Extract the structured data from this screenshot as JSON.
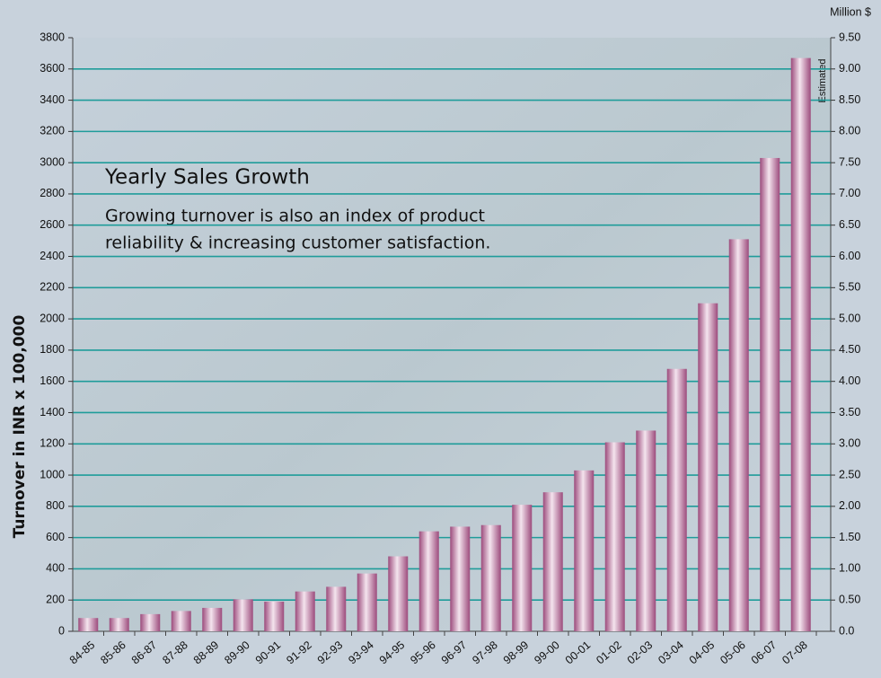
{
  "chart_data": {
    "type": "bar",
    "title": "Yearly Sales Growth",
    "subtitle": [
      "Growing turnover is also an index of product",
      "reliability & increasing customer satisfaction."
    ],
    "ylabel": "Turnover in INR x 100,000",
    "y2label": "Million $",
    "annotation": "Estimated",
    "categories": [
      "84-85",
      "85-86",
      "86-87",
      "87-88",
      "88-89",
      "89-90",
      "90-91",
      "91-92",
      "92-93",
      "93-94",
      "94-95",
      "95-96",
      "96-97",
      "97-98",
      "98-99",
      "99-00",
      "00-01",
      "01-02",
      "02-03",
      "03-04",
      "04-05",
      "05-06",
      "06-07",
      "07-08"
    ],
    "values": [
      85,
      85,
      110,
      130,
      150,
      205,
      190,
      255,
      285,
      370,
      480,
      640,
      670,
      680,
      810,
      890,
      1030,
      1210,
      1285,
      1680,
      2100,
      2510,
      3030,
      3670
    ],
    "color": "#9c4b7c",
    "grid_color": "#1f9c9a",
    "ylim": [
      0,
      3800
    ],
    "yticks": [
      0,
      200,
      400,
      600,
      800,
      1000,
      1200,
      1400,
      1600,
      1800,
      2000,
      2200,
      2400,
      2600,
      2800,
      3000,
      3200,
      3400,
      3600,
      3800
    ],
    "y2lim": [
      0,
      9.5
    ],
    "y2ticks": [
      {
        "value": 0,
        "label": "0.0"
      },
      {
        "value": 0.5,
        "label": "0.50"
      },
      {
        "value": 1,
        "label": "1.00"
      },
      {
        "value": 1.5,
        "label": "1.50"
      },
      {
        "value": 2,
        "label": "2.00"
      },
      {
        "value": 2.5,
        "label": "2.50"
      },
      {
        "value": 3,
        "label": "3.00"
      },
      {
        "value": 3.5,
        "label": "3.50"
      },
      {
        "value": 4,
        "label": "4.00"
      },
      {
        "value": 4.5,
        "label": "4.50"
      },
      {
        "value": 5,
        "label": "5.00"
      },
      {
        "value": 5.5,
        "label": "5.50"
      },
      {
        "value": 6,
        "label": "6.00"
      },
      {
        "value": 6.5,
        "label": "6.50"
      },
      {
        "value": 7,
        "label": "7.00"
      },
      {
        "value": 7.5,
        "label": "7.50"
      },
      {
        "value": 8,
        "label": "8.00"
      },
      {
        "value": 8.5,
        "label": "8.50"
      },
      {
        "value": 9,
        "label": "9.00"
      },
      {
        "value": 9.5,
        "label": "9.50"
      }
    ],
    "grid": true
  }
}
